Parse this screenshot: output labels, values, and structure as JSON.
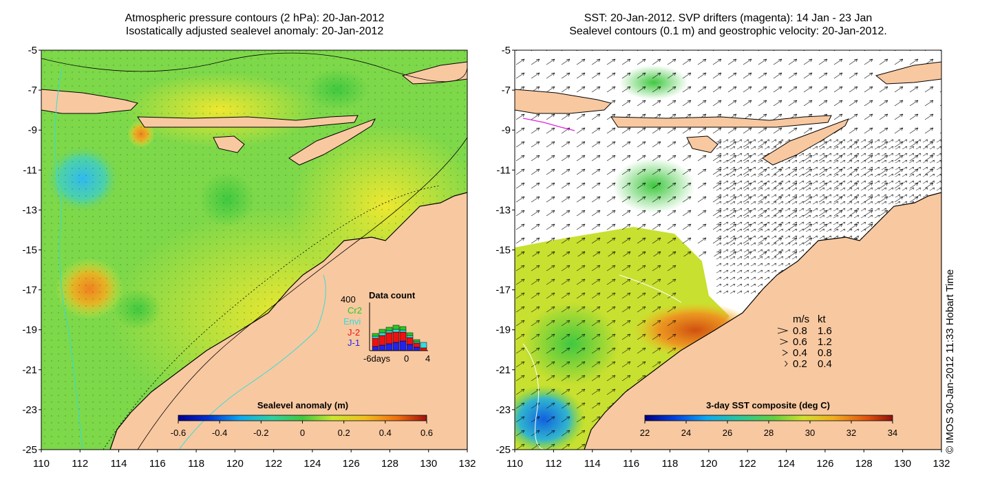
{
  "left_panel": {
    "title_line1": "Atmospheric pressure contours (2 hPa): 20-Jan-2012",
    "title_line2": "Isostatically adjusted sealevel anomaly: 20-Jan-2012",
    "colorbar": {
      "label": "Sealevel anomaly (m)",
      "ticks": [
        "-0.6",
        "-0.4",
        "-0.2",
        "0",
        "0.2",
        "0.4",
        "0.6"
      ]
    },
    "data_count": {
      "title": "Data count",
      "ymax_label": "400",
      "series": [
        {
          "name": "Cr2",
          "color": "#22cc22"
        },
        {
          "name": "Envi",
          "color": "#33dddd"
        },
        {
          "name": "J-2",
          "color": "#ee1111"
        },
        {
          "name": "J-1",
          "color": "#2222ee"
        }
      ],
      "x_labels": [
        "-6days",
        "0",
        "4"
      ]
    }
  },
  "right_panel": {
    "title_line1": "SST: 20-Jan-2012. SVP drifters (magenta): 14 Jan - 23 Jan",
    "title_line2": "Sealevel contours (0.1 m) and geostrophic velocity: 20-Jan-2012.",
    "colorbar": {
      "label": "3-day SST composite (deg C)",
      "ticks": [
        "22",
        "24",
        "26",
        "28",
        "30",
        "32",
        "34"
      ]
    },
    "velocity_legend": {
      "header_ms": "m/s",
      "header_kt": "kt",
      "rows": [
        {
          "ms": "0.8",
          "kt": "1.6"
        },
        {
          "ms": "0.6",
          "kt": "1.2"
        },
        {
          "ms": "0.4",
          "kt": "0.8"
        },
        {
          "ms": "0.2",
          "kt": "0.4"
        }
      ]
    }
  },
  "axes": {
    "lat_labels": [
      "-5",
      "-7",
      "-9",
      "-11",
      "-13",
      "-15",
      "-17",
      "-19",
      "-21",
      "-23",
      "-25"
    ],
    "lon_labels": [
      "110",
      "112",
      "114",
      "116",
      "118",
      "120",
      "122",
      "124",
      "126",
      "128",
      "130",
      "132"
    ]
  },
  "credit": "© IMOS 30-Jan-2012 11:33 Hobart Time",
  "colors": {
    "land": "#f8c8a0",
    "ocean_green": "#7dd84a",
    "ocean_yellow": "#e6ea3c",
    "ocean_blue": "#4cc2ec",
    "ocean_orange": "#f0a020"
  }
}
